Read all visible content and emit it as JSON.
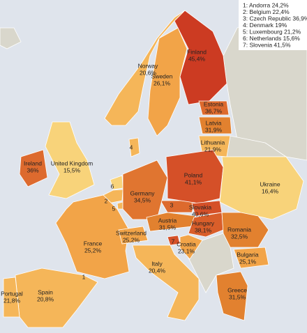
{
  "chart_data": {
    "type": "map",
    "regions": [
      {
        "name": "Finland",
        "value": 45.4,
        "value_label": "45,4%",
        "color": "#cc3b22"
      },
      {
        "name": "Sweden",
        "value": 26.1,
        "value_label": "26,1%",
        "color": "#f2a448"
      },
      {
        "name": "Norway",
        "value": 20.6,
        "value_label": "20,6%",
        "color": "#f5b659"
      },
      {
        "name": "Estonia",
        "value": 36.7,
        "value_label": "36,7%",
        "color": "#dd6a2e"
      },
      {
        "name": "Latvia",
        "value": 31.9,
        "value_label": "31,9%",
        "color": "#e2812f"
      },
      {
        "name": "Lithuania",
        "value": 21.9,
        "value_label": "21,9%",
        "color": "#f5b659"
      },
      {
        "name": "Ireland",
        "value": 36,
        "value_label": "36%",
        "color": "#dd6a2e"
      },
      {
        "name": "United Kingdom",
        "value": 15.5,
        "value_label": "15,5%",
        "color": "#f8d37a"
      },
      {
        "name": "France",
        "value": 25.2,
        "value_label": "25,2%",
        "color": "#f2a448"
      },
      {
        "name": "Spain",
        "value": 20.8,
        "value_label": "20,8%",
        "color": "#f5b659"
      },
      {
        "name": "Portugal",
        "value": 21.8,
        "value_label": "21,8%",
        "color": "#f5b659"
      },
      {
        "name": "Germany",
        "value": 34.5,
        "value_label": "34,5%",
        "color": "#e07530"
      },
      {
        "name": "Poland",
        "value": 41.1,
        "value_label": "41,1%",
        "color": "#d55028"
      },
      {
        "name": "Ukraine",
        "value": 16.4,
        "value_label": "16,4%",
        "color": "#f8d37a"
      },
      {
        "name": "Slovakia",
        "value": 40.6,
        "value_label": "40,6%",
        "color": "#d55028"
      },
      {
        "name": "Austria",
        "value": 31.5,
        "value_label": "31,5%",
        "color": "#e2812f"
      },
      {
        "name": "Switzerland",
        "value": 25.2,
        "value_label": "25,2%",
        "color": "#f2a448"
      },
      {
        "name": "Hungary",
        "value": 38.1,
        "value_label": "38,1%",
        "color": "#d95e2a"
      },
      {
        "name": "Romania",
        "value": 32.5,
        "value_label": "32,5%",
        "color": "#e2812f"
      },
      {
        "name": "Croatia",
        "value": 23.1,
        "value_label": "23,1%",
        "color": "#f2a448"
      },
      {
        "name": "Bulgaria",
        "value": 25.1,
        "value_label": "25,1%",
        "color": "#f2a448"
      },
      {
        "name": "Italy",
        "value": 20.4,
        "value_label": "20,4%",
        "color": "#f5b659"
      },
      {
        "name": "Greece",
        "value": 31.5,
        "value_label": "31,5%",
        "color": "#e2812f"
      }
    ],
    "markers": [
      "1",
      "2",
      "3",
      "4",
      "5",
      "6",
      "7"
    ],
    "legend": [
      "1: Andorra 24,2%",
      "2: Belgium 22,4%",
      "3: Czech Republic 36,9%",
      "4: Denmark 19%",
      "5: Luxembourg 21,2%",
      "6: Netherlands 15,6%",
      "7: Slovenia 41,5%"
    ]
  }
}
